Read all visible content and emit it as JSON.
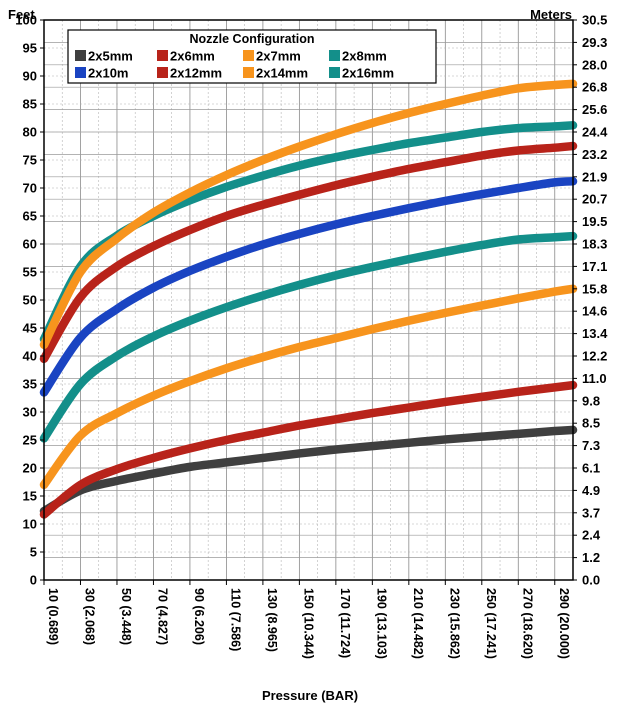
{
  "chart_data": {
    "type": "line",
    "left_axis_label": "Feet",
    "right_axis_label": "Meters",
    "xlabel": "Pressure (BAR)",
    "xlim": [
      10,
      300
    ],
    "ylim": [
      0,
      100
    ],
    "y_ticks": [
      0,
      5,
      10,
      15,
      20,
      25,
      30,
      35,
      40,
      45,
      50,
      55,
      60,
      65,
      70,
      75,
      80,
      85,
      90,
      95,
      100
    ],
    "y_right_ticks": [
      "0.0",
      "1.2",
      "2.4",
      "3.7",
      "4.9",
      "6.1",
      "7.3",
      "8.5",
      "9.8",
      "11.0",
      "12.2",
      "13.4",
      "14.6",
      "15.8",
      "17.1",
      "18.3",
      "19.5",
      "20.7",
      "21.9",
      "23.2",
      "24.4",
      "25.6",
      "26.8",
      "28.0",
      "29.3",
      "30.5"
    ],
    "x_tick_labels": [
      "10 (0.689)",
      "30 (2.068)",
      "50 (3.448)",
      "70 (4.827)",
      "90 (6.206)",
      "110 (7.586)",
      "130 (8.965)",
      "150 (10.344)",
      "170 (11.724)",
      "190 (13.103)",
      "210 (14.482)",
      "230 (15.862)",
      "250 (17.241)",
      "270 (18.620)",
      "290 (20.000)"
    ],
    "x_tick_values": [
      10,
      30,
      50,
      70,
      90,
      110,
      130,
      150,
      170,
      190,
      210,
      230,
      250,
      270,
      290
    ],
    "grid": true,
    "legend": {
      "title": "Nozzle Configuration",
      "placement": "top-left"
    },
    "x": [
      10,
      30,
      50,
      70,
      90,
      110,
      130,
      150,
      170,
      190,
      210,
      230,
      250,
      270,
      290,
      300
    ],
    "series": [
      {
        "name": "2x5mm",
        "color": "#3f3f3f",
        "values": [
          12.3,
          16.0,
          17.7,
          19.0,
          20.2,
          21.0,
          21.8,
          22.6,
          23.3,
          23.9,
          24.5,
          25.1,
          25.6,
          26.1,
          26.6,
          26.8
        ]
      },
      {
        "name": "2x6mm",
        "color": "#b8231a",
        "values": [
          11.7,
          17.0,
          19.8,
          21.8,
          23.5,
          25.0,
          26.3,
          27.6,
          28.7,
          29.8,
          30.8,
          31.8,
          32.7,
          33.6,
          34.4,
          34.8
        ]
      },
      {
        "name": "2x7mm",
        "color": "#f7941d",
        "values": [
          17.0,
          25.8,
          29.8,
          32.9,
          35.5,
          37.8,
          39.8,
          41.6,
          43.2,
          44.8,
          46.3,
          47.7,
          49.0,
          50.3,
          51.5,
          52.0
        ]
      },
      {
        "name": "2x8mm",
        "color": "#138f8a",
        "values": [
          25.3,
          35.0,
          40.0,
          43.5,
          46.3,
          48.7,
          50.8,
          52.7,
          54.4,
          55.9,
          57.3,
          58.6,
          59.8,
          60.8,
          61.2,
          61.4
        ]
      },
      {
        "name": "2x10m",
        "color": "#1a44c2",
        "values": [
          33.5,
          43.3,
          48.4,
          52.2,
          55.2,
          57.7,
          59.9,
          61.8,
          63.5,
          65.0,
          66.4,
          67.7,
          68.9,
          70.0,
          71.0,
          71.2
        ]
      },
      {
        "name": "2x12mm",
        "color": "#b8231a",
        "values": [
          39.5,
          50.5,
          56.0,
          59.6,
          62.5,
          65.0,
          67.0,
          68.8,
          70.5,
          72.0,
          73.4,
          74.6,
          75.8,
          76.7,
          77.2,
          77.5
        ]
      },
      {
        "name": "2x14mm",
        "color": "#f7941d",
        "values": [
          42.0,
          55.0,
          61.0,
          65.6,
          69.2,
          72.3,
          75.0,
          77.4,
          79.6,
          81.6,
          83.4,
          85.0,
          86.5,
          87.8,
          88.4,
          88.6
        ]
      },
      {
        "name": "2x16mm",
        "color": "#138f8a",
        "values": [
          43.0,
          56.0,
          61.5,
          65.0,
          67.8,
          70.2,
          72.2,
          74.0,
          75.5,
          76.8,
          78.0,
          79.0,
          80.0,
          80.7,
          81.0,
          81.2
        ]
      }
    ]
  }
}
